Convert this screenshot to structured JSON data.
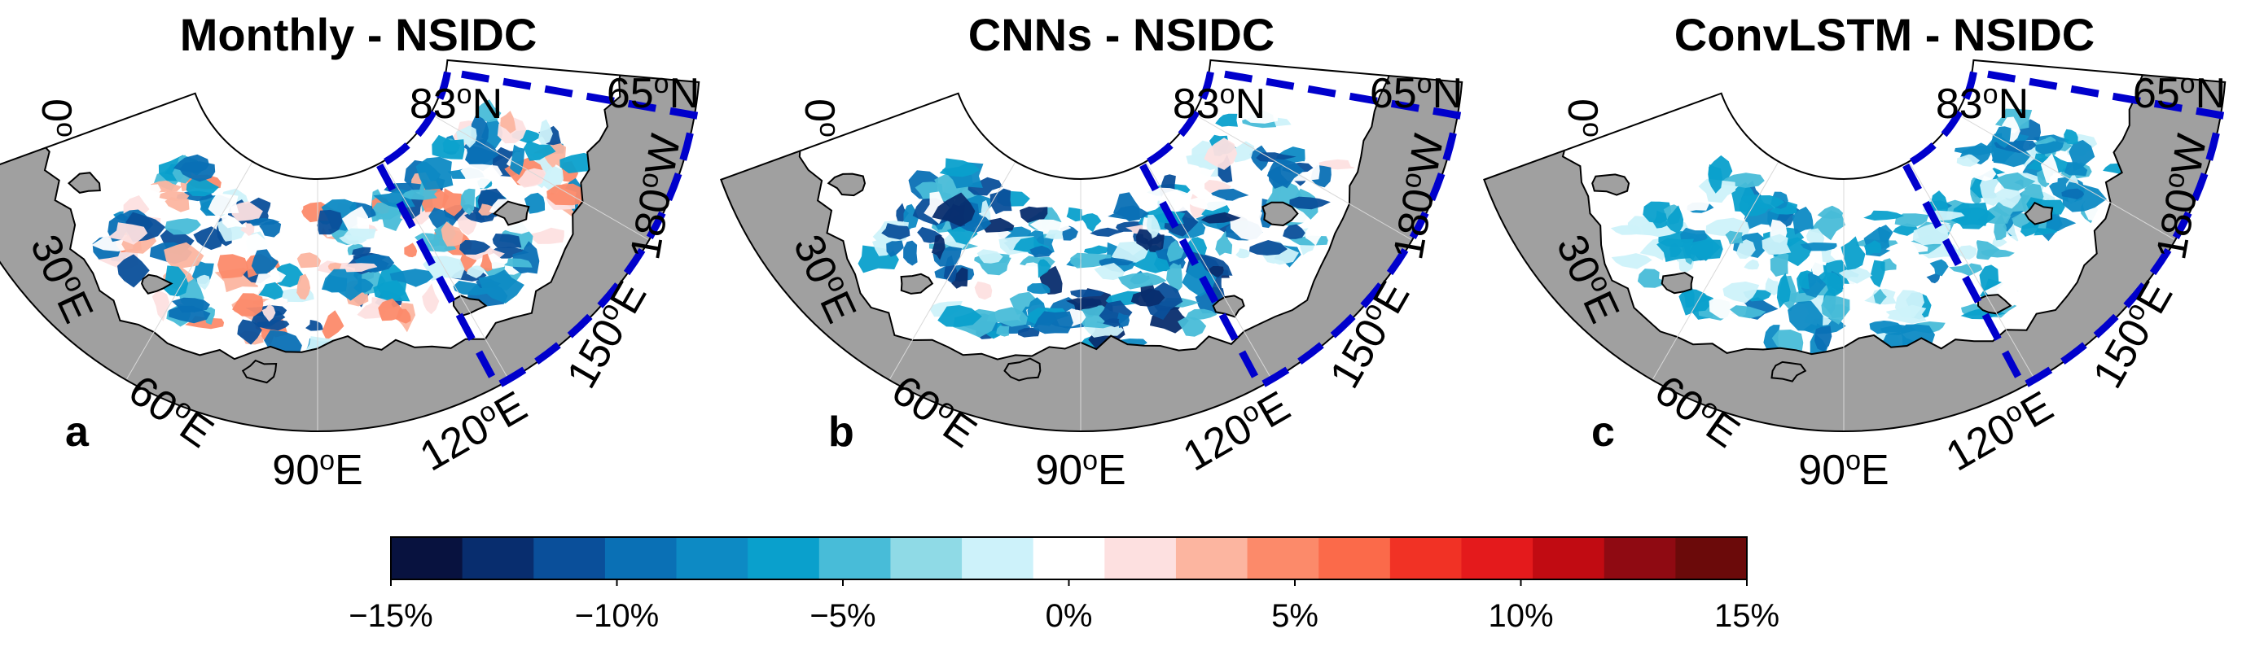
{
  "panels": [
    {
      "title": "Monthly - NSIDC",
      "letter": "a",
      "labels": {
        "lon_0": {
          "value": "0",
          "unit": "o"
        },
        "lon_30e": {
          "value": "30",
          "unit": "oE"
        },
        "lon_60e": {
          "value": "60",
          "unit": "oE"
        },
        "lon_90e": {
          "value": "90",
          "unit": "oE"
        },
        "lon_120e": {
          "value": "120",
          "unit": "oE"
        },
        "lon_150e": {
          "value": "150",
          "unit": "oE"
        },
        "lon_180w": {
          "value": "180",
          "unit": "oW"
        },
        "lat_83n": {
          "value": "83",
          "unit": "oN"
        },
        "lat_65n": {
          "value": "65",
          "unit": "oN"
        }
      }
    },
    {
      "title": "CNNs - NSIDC",
      "letter": "b",
      "labels": {
        "lon_0": {
          "value": "0",
          "unit": "o"
        },
        "lon_30e": {
          "value": "30",
          "unit": "oE"
        },
        "lon_60e": {
          "value": "60",
          "unit": "oE"
        },
        "lon_90e": {
          "value": "90",
          "unit": "oE"
        },
        "lon_120e": {
          "value": "120",
          "unit": "oE"
        },
        "lon_150e": {
          "value": "150",
          "unit": "oE"
        },
        "lon_180w": {
          "value": "180",
          "unit": "oW"
        },
        "lat_83n": {
          "value": "83",
          "unit": "oN"
        },
        "lat_65n": {
          "value": "65",
          "unit": "oN"
        }
      }
    },
    {
      "title": "ConvLSTM - NSIDC",
      "letter": "c",
      "labels": {
        "lon_0": {
          "value": "0",
          "unit": "o"
        },
        "lon_30e": {
          "value": "30",
          "unit": "oE"
        },
        "lon_60e": {
          "value": "60",
          "unit": "oE"
        },
        "lon_90e": {
          "value": "90",
          "unit": "oE"
        },
        "lon_120e": {
          "value": "120",
          "unit": "oE"
        },
        "lon_150e": {
          "value": "150",
          "unit": "oE"
        },
        "lon_180w": {
          "value": "180",
          "unit": "oW"
        },
        "lat_83n": {
          "value": "83",
          "unit": "oN"
        },
        "lat_65n": {
          "value": "65",
          "unit": "oN"
        }
      }
    }
  ],
  "map_style": {
    "ocean_color": "#ffffff",
    "land_color": "#a0a0a0",
    "land_edge_color": "#000000",
    "region_box_color": "#0000cc"
  },
  "colorbar": {
    "range": [
      -15,
      15
    ],
    "step": 2,
    "colors": [
      "#08123f",
      "#082d6e",
      "#0a4f9a",
      "#0a70b5",
      "#0d8ac4",
      "#0aa0cc",
      "#48bcd8",
      "#8fdae6",
      "#cdf2fa",
      "#ffffff",
      "#fde0e0",
      "#fcb5a0",
      "#fc8a6a",
      "#fb6a4a",
      "#f13225",
      "#e41a1c",
      "#c10b12",
      "#8f0a12",
      "#6b0a0a"
    ],
    "ticks": [
      {
        "value": -15,
        "label": "−15%"
      },
      {
        "value": -10,
        "label": "−10%"
      },
      {
        "value": -5,
        "label": "−5%"
      },
      {
        "value": 0,
        "label": "0%"
      },
      {
        "value": 5,
        "label": "5%"
      },
      {
        "value": 10,
        "label": "10%"
      },
      {
        "value": 15,
        "label": "15%"
      }
    ]
  }
}
